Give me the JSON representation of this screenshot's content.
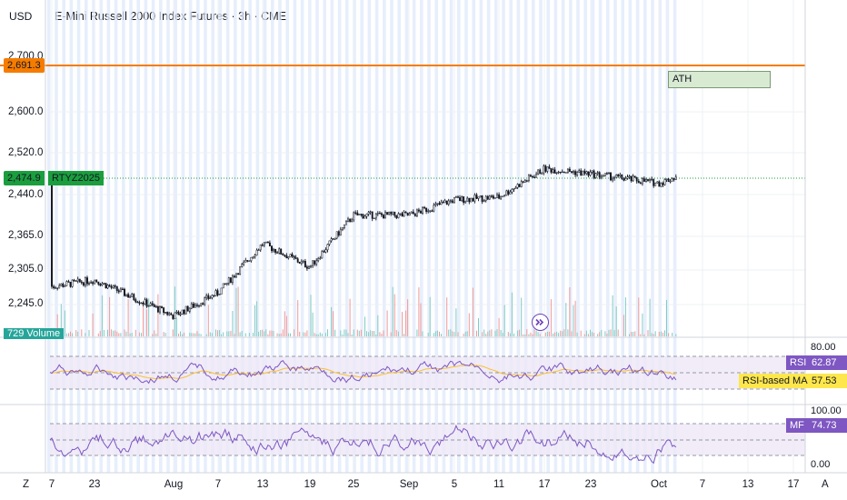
{
  "header": {
    "currency": "USD",
    "title": "E-Mini Russell 2000 Index Futures · 3h · CME"
  },
  "price_scale": {
    "labels": [
      "2,600.0",
      "2,520.0",
      "2,440.0",
      "2,365.0",
      "2,305.0",
      "2,245.0"
    ],
    "hidden_top": "2,700.0"
  },
  "ath_line": {
    "value": "2,691.3",
    "label": "ATH",
    "color": "#f57c00"
  },
  "last_price": {
    "value": "2,474.9",
    "symbol": "RTYZ2025",
    "color": "#1b9e3e"
  },
  "volume_tag": {
    "value": "729",
    "label": "Volume"
  },
  "rsi": {
    "label": "RSI",
    "value": "62.87",
    "ma_label": "RSI-based MA",
    "ma_value": "57.53",
    "scale_top": "80.00",
    "color": "#7e57c2",
    "ma_color": "#fbc02d"
  },
  "mfi": {
    "label": "MF",
    "value": "74.73",
    "scale_top": "100.00",
    "scale_bottom": "0.00",
    "color": "#7e57c2"
  },
  "time_axis": {
    "labels": [
      "7",
      "23",
      "Aug",
      "7",
      "13",
      "19",
      "25",
      "Sep",
      "5",
      "11",
      "17",
      "23",
      "Oct",
      "7",
      "13",
      "17"
    ],
    "left_button": "Z",
    "right_button": "A"
  },
  "goto_icon": "goto-realtime-icon",
  "chart_data": {
    "type": "candlestick",
    "title": "E-Mini Russell 2000 Index Futures · 3h · CME",
    "ylabel": "USD",
    "ylim": [
      2180,
      2720
    ],
    "key_points": [
      [
        "7",
        2262
      ],
      [
        "23",
        2275
      ],
      [
        "Aug",
        2205
      ],
      [
        "7",
        2250
      ],
      [
        "13",
        2345
      ],
      [
        "19",
        2300
      ],
      [
        "25",
        2400
      ],
      [
        "Sep",
        2400
      ],
      [
        "5",
        2430
      ],
      [
        "11",
        2435
      ],
      [
        "17",
        2490
      ],
      [
        "23",
        2480
      ],
      [
        "Oct",
        2462
      ],
      [
        "last",
        2474.9
      ]
    ],
    "ath": 2691.3
  }
}
